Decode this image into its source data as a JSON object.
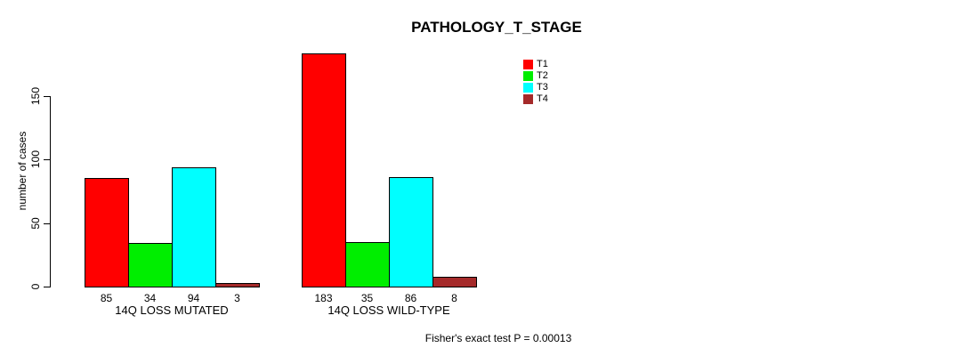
{
  "chart_data": {
    "type": "bar",
    "title": "PATHOLOGY_T_STAGE",
    "ylabel": "number of cases",
    "xlabel": "",
    "ylim": [
      0,
      150
    ],
    "yticks": [
      0,
      50,
      100,
      150
    ],
    "grid": false,
    "legend_position": "top-right",
    "categories": [
      "14Q LOSS MUTATED",
      "14Q LOSS WILD-TYPE"
    ],
    "series": [
      {
        "name": "T1",
        "color": "#ff0000",
        "values": [
          85,
          183
        ]
      },
      {
        "name": "T2",
        "color": "#00ee00",
        "values": [
          34,
          35
        ]
      },
      {
        "name": "T3",
        "color": "#00ffff",
        "values": [
          94,
          86
        ]
      },
      {
        "name": "T4",
        "color": "#a52a2a",
        "values": [
          3,
          8
        ]
      }
    ],
    "annotation": "Fisher's exact test P = 0.00013"
  }
}
